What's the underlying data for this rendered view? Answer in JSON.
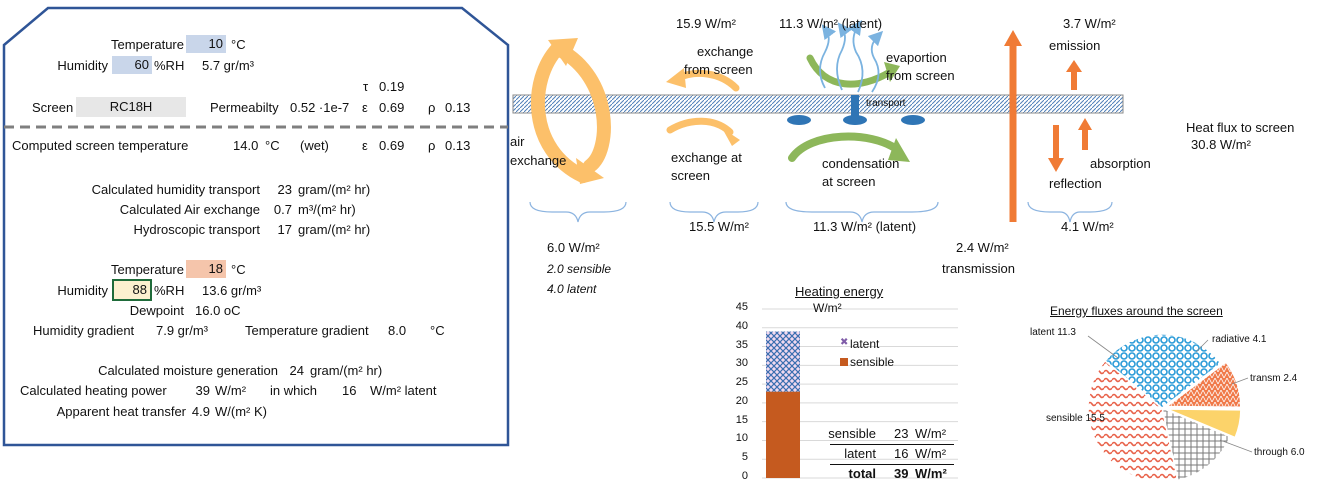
{
  "left_panel": {
    "outside": {
      "temp_label": "Temperature",
      "temp_value": "10",
      "temp_unit": "°C",
      "hum_label": "Humidity",
      "hum_value": "60",
      "hum_unit": "%RH",
      "abs_hum": "5.7 gr/m³"
    },
    "screen": {
      "tau_label": "τ",
      "tau_value": "0.19",
      "screen_label": "Screen",
      "screen_value": "RC18H",
      "perm_label": "Permeabilty",
      "perm_value": "0.52 ·1e-7",
      "eps_label": "ε",
      "eps_value": "0.69",
      "rho_label": "ρ",
      "rho_value": "0.13"
    },
    "computed": {
      "label": "Computed screen temperature",
      "value": "14.0",
      "unit": "°C",
      "wet": "(wet)",
      "eps_label": "ε",
      "eps_value": "0.69",
      "rho_label": "ρ",
      "rho_value": "0.13"
    },
    "transport": [
      {
        "label": "Calculated humidity transport",
        "value": "23",
        "unit": "gram/(m² hr)"
      },
      {
        "label": "Calculated Air exchange",
        "value": "0.7",
        "unit": "m³/(m² hr)"
      },
      {
        "label": "Hydroscopic transport",
        "value": "17",
        "unit": "gram/(m² hr)"
      }
    ],
    "inside": {
      "temp_label": "Temperature",
      "temp_value": "18",
      "temp_unit": "°C",
      "hum_label": "Humidity",
      "hum_value": "88",
      "hum_unit": "%RH",
      "abs_hum": "13.6 gr/m³",
      "dew_label": "Dewpoint",
      "dew_value": "16.0 oC",
      "hgrad_label": "Humidity gradient",
      "hgrad_value": "7.9 gr/m³",
      "tgrad_label": "Temperature gradient",
      "tgrad_value": "8.0",
      "tgrad_unit": "°C"
    },
    "results": {
      "moist_label": "Calculated moisture generation",
      "moist_value": "24",
      "moist_unit": "gram/(m² hr)",
      "heat_label": "Calculated heating power",
      "heat_value": "39",
      "heat_unit": "W/m²",
      "in_which": "in which",
      "latent_value": "16",
      "latent_unit": "W/m² latent",
      "apparent_label": "Apparent heat transfer",
      "apparent_value": "4.9",
      "apparent_unit": "W/(m² K)"
    }
  },
  "diagram": {
    "exchange_from_top": "15.9 W/m²",
    "latent_top": "11.3 W/m² (latent)",
    "emission_value": "3.7 W/m²",
    "emission_label": "emission",
    "exchange_from_screen": [
      "exchange",
      "from screen"
    ],
    "evaporation": [
      "evaportion",
      "from screen"
    ],
    "transport_label": "transport",
    "air_exchange": [
      "air",
      "exchange"
    ],
    "exchange_at_screen": [
      "exchange at",
      "screen"
    ],
    "condensation": [
      "condensation",
      "at screen"
    ],
    "absorption": "absorption",
    "reflection": "reflection",
    "heat_flux_label": "Heat flux to screen",
    "heat_flux_value": "30.8 W/m²",
    "air_total": "6.0 W/m²",
    "air_sensible": "2.0  sensible",
    "air_latent": "4.0  latent",
    "exchange_bottom": "15.5 W/m²",
    "latent_bottom": "11.3 W/m² (latent)",
    "transmission_value": "2.4 W/m²",
    "transmission_label": "transmission",
    "reflection_value": "4.1 W/m²"
  },
  "chart_data": [
    {
      "type": "bar",
      "title": "Heating energy",
      "ylabel": "W/m²",
      "ylim": [
        0,
        45
      ],
      "yticks": [
        "0",
        "5",
        "10",
        "15",
        "20",
        "25",
        "30",
        "35",
        "40",
        "45"
      ],
      "stacked": true,
      "series": [
        {
          "name": "sensible",
          "values": [
            23
          ],
          "color": "#c55a1f"
        },
        {
          "name": "latent",
          "values": [
            16
          ],
          "color": "#7f5ca8"
        }
      ],
      "summary": [
        {
          "label": "sensible",
          "value": "23",
          "unit": "W/m²"
        },
        {
          "label": "latent",
          "value": "16",
          "unit": "W/m²"
        },
        {
          "label": "total",
          "value": "39",
          "unit": "W/m²"
        }
      ]
    },
    {
      "type": "pie",
      "title": "Energy fluxes around the screen",
      "slices": [
        {
          "label": "latent 11.3",
          "value": 11.3,
          "color": "#33a4dc"
        },
        {
          "label": "radiative 4.1",
          "value": 4.1,
          "color": "#f08b5f"
        },
        {
          "label": "transm 2.4",
          "value": 2.4,
          "color": "#fcd36a"
        },
        {
          "label": "through 6.0",
          "value": 6.0,
          "color": "#8a8a8a"
        },
        {
          "label": "sensible 15.5",
          "value": 15.5,
          "color": "#e8785c"
        }
      ]
    }
  ]
}
